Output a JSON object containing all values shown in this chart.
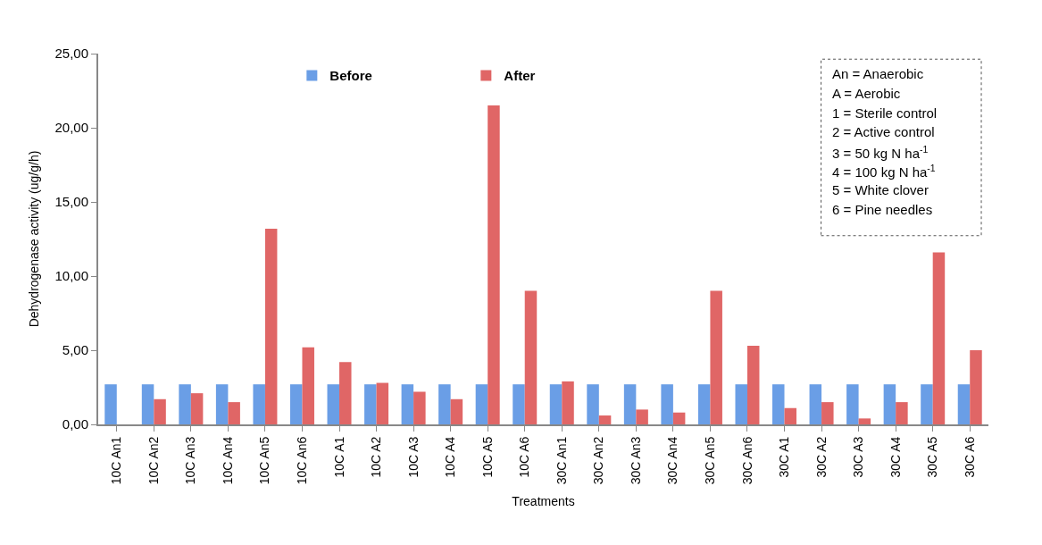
{
  "chart_data": {
    "type": "bar",
    "xlabel": "Treatments",
    "ylabel": "Dehydrogenase activity (ug/g/h)",
    "categories": [
      "10C An1",
      "10C An2",
      "10C An3",
      "10C An4",
      "10C An5",
      "10C An6",
      "10C A1",
      "10C A2",
      "10C A3",
      "10C A4",
      "10C A5",
      "10C A6",
      "30C An1",
      "30C An2",
      "30C An3",
      "30C An4",
      "30C An5",
      "30C An6",
      "30C A1",
      "30C A2",
      "30C A3",
      "30C A4",
      "30C A5",
      "30C A6"
    ],
    "series": [
      {
        "name": "Before",
        "color": "#6a9ee6",
        "values": [
          2.7,
          2.7,
          2.7,
          2.7,
          2.7,
          2.7,
          2.7,
          2.7,
          2.7,
          2.7,
          2.7,
          2.7,
          2.7,
          2.7,
          2.7,
          2.7,
          2.7,
          2.7,
          2.7,
          2.7,
          2.7,
          2.7,
          2.7,
          2.7
        ]
      },
      {
        "name": "After",
        "color": "#e06666",
        "values": [
          0,
          1.7,
          2.1,
          1.5,
          13.2,
          5.2,
          4.2,
          2.8,
          2.2,
          1.7,
          21.5,
          9.0,
          2.9,
          0.6,
          1.0,
          0.8,
          9.0,
          5.3,
          1.1,
          1.5,
          0.4,
          1.5,
          11.6,
          5.0
        ]
      }
    ],
    "ylim": [
      0,
      25
    ],
    "yticks": [
      {
        "value": 0,
        "label": "0,00"
      },
      {
        "value": 5,
        "label": "5,00"
      },
      {
        "value": 10,
        "label": "10,00"
      },
      {
        "value": 15,
        "label": "15,00"
      },
      {
        "value": 20,
        "label": "20,00"
      },
      {
        "value": 25,
        "label": "25,00"
      }
    ],
    "legend": "top",
    "annotations": [
      "An = Anaerobic",
      "A = Aerobic",
      "1 = Sterile control",
      "2 = Active control",
      "3 = 50 kg N ha$^{-1}$",
      "4 = 100 kg N ha$^{-1}$",
      "5 = White clover",
      "6 = Pine needles"
    ]
  }
}
